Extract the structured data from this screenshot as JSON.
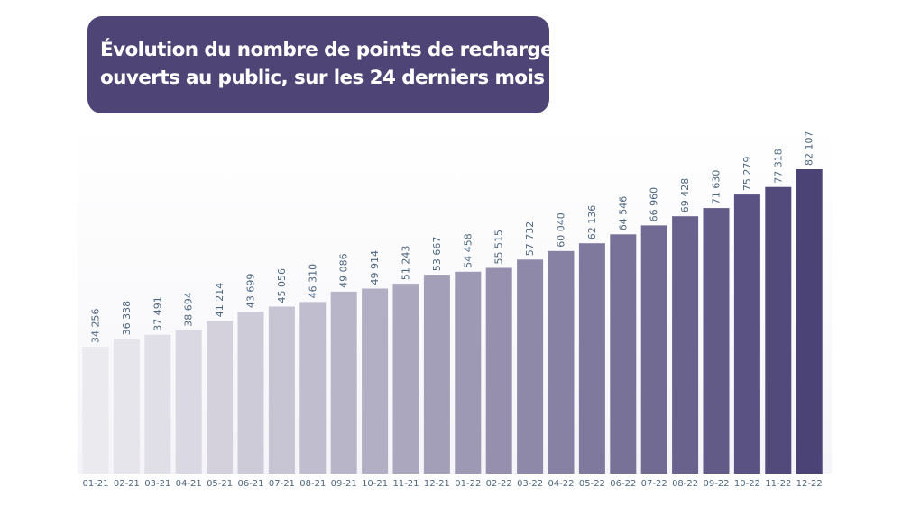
{
  "title": {
    "line1": "Évolution du nombre de points de recharge",
    "line2": "ouverts au public, sur les 24 derniers mois"
  },
  "chart_data": {
    "type": "bar",
    "title": "Évolution du nombre de points de recharge ouverts au public, sur les 24 derniers mois",
    "categories": [
      "01-21",
      "02-21",
      "03-21",
      "04-21",
      "05-21",
      "06-21",
      "07-21",
      "08-21",
      "09-21",
      "10-21",
      "11-21",
      "12-21",
      "01-22",
      "02-22",
      "03-22",
      "04-22",
      "05-22",
      "06-22",
      "07-22",
      "08-22",
      "09-22",
      "10-22",
      "11-22",
      "12-22"
    ],
    "values": [
      34256,
      36338,
      37491,
      38694,
      41214,
      43699,
      45056,
      46310,
      49086,
      49914,
      51243,
      53667,
      54458,
      55515,
      57732,
      60040,
      62136,
      64546,
      66960,
      69428,
      71630,
      75279,
      77318,
      82107
    ],
    "value_labels": [
      "34 256",
      "36 338",
      "37 491",
      "38 694",
      "41 214",
      "43 699",
      "45 056",
      "46 310",
      "49 086",
      "49 914",
      "51 243",
      "53 667",
      "54 458",
      "55 515",
      "57 732",
      "60 040",
      "62 136",
      "64 546",
      "66 960",
      "69 428",
      "71 630",
      "75 279",
      "77 318",
      "82 107"
    ],
    "xlabel": "",
    "ylabel": "",
    "grid": false,
    "legend": "none",
    "color_start": "#ebeaef",
    "color_end": "#4b4276",
    "label_color": "#4d6680"
  }
}
